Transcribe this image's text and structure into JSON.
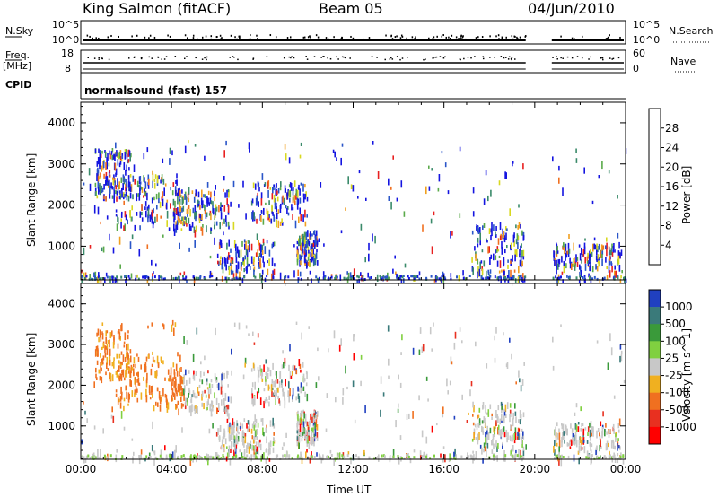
{
  "header": {
    "station": "King Salmon (fitACF)",
    "beam": "Beam 05",
    "date": "04/Jun/2010"
  },
  "aux_panels": {
    "nsky_label": "N.Sky",
    "nsky_ticks": [
      "10^5",
      "10^0"
    ],
    "nsearch_label": "N.Search",
    "nsearch_ticks": [
      "10^5",
      "10^0"
    ],
    "freq_label": "Freq.",
    "freq_unit": "[MHz]",
    "freq_ticks": [
      "18",
      "8"
    ],
    "nave_label": "Nave",
    "nave_ticks": [
      "60",
      "0"
    ],
    "cpid_label": "CPID",
    "cpid_value": "normalsound (fast) 157"
  },
  "chart_data": [
    {
      "type": "heatmap",
      "name": "power",
      "ylabel": "Slant Range [km]",
      "ylim": [
        180,
        4500
      ],
      "yticks": [
        "1000",
        "2000",
        "3000",
        "4000"
      ],
      "colorbar": {
        "label": "Power [dB]",
        "ticks": [
          "4",
          "8",
          "12",
          "16",
          "20",
          "24",
          "28"
        ],
        "colors": [
          "#1414e0",
          "#2a55c8",
          "#3a8a6a",
          "#5aaa4a",
          "#d8d820",
          "#f0a020",
          "#f07020",
          "#e82020"
        ]
      }
    },
    {
      "type": "heatmap",
      "name": "velocity",
      "ylabel": "Slant Range [km]",
      "ylim": [
        180,
        4500
      ],
      "yticks": [
        "1000",
        "2000",
        "3000",
        "4000"
      ],
      "xlabel": "Time UT",
      "xticks": [
        "00:00",
        "04:00",
        "08:00",
        "12:00",
        "16:00",
        "20:00",
        "00:00"
      ],
      "colorbar": {
        "label": "Velocity [m s^-1]",
        "ticks": [
          "1000",
          "500",
          "100",
          "25",
          "-25",
          "-100",
          "-500",
          "-1000"
        ],
        "colors": [
          "#2040c0",
          "#3a7a7a",
          "#3a9a3a",
          "#80d040",
          "#c8c8c8",
          "#f0b020",
          "#f07020",
          "#e83020",
          "#ff0000"
        ]
      }
    }
  ]
}
